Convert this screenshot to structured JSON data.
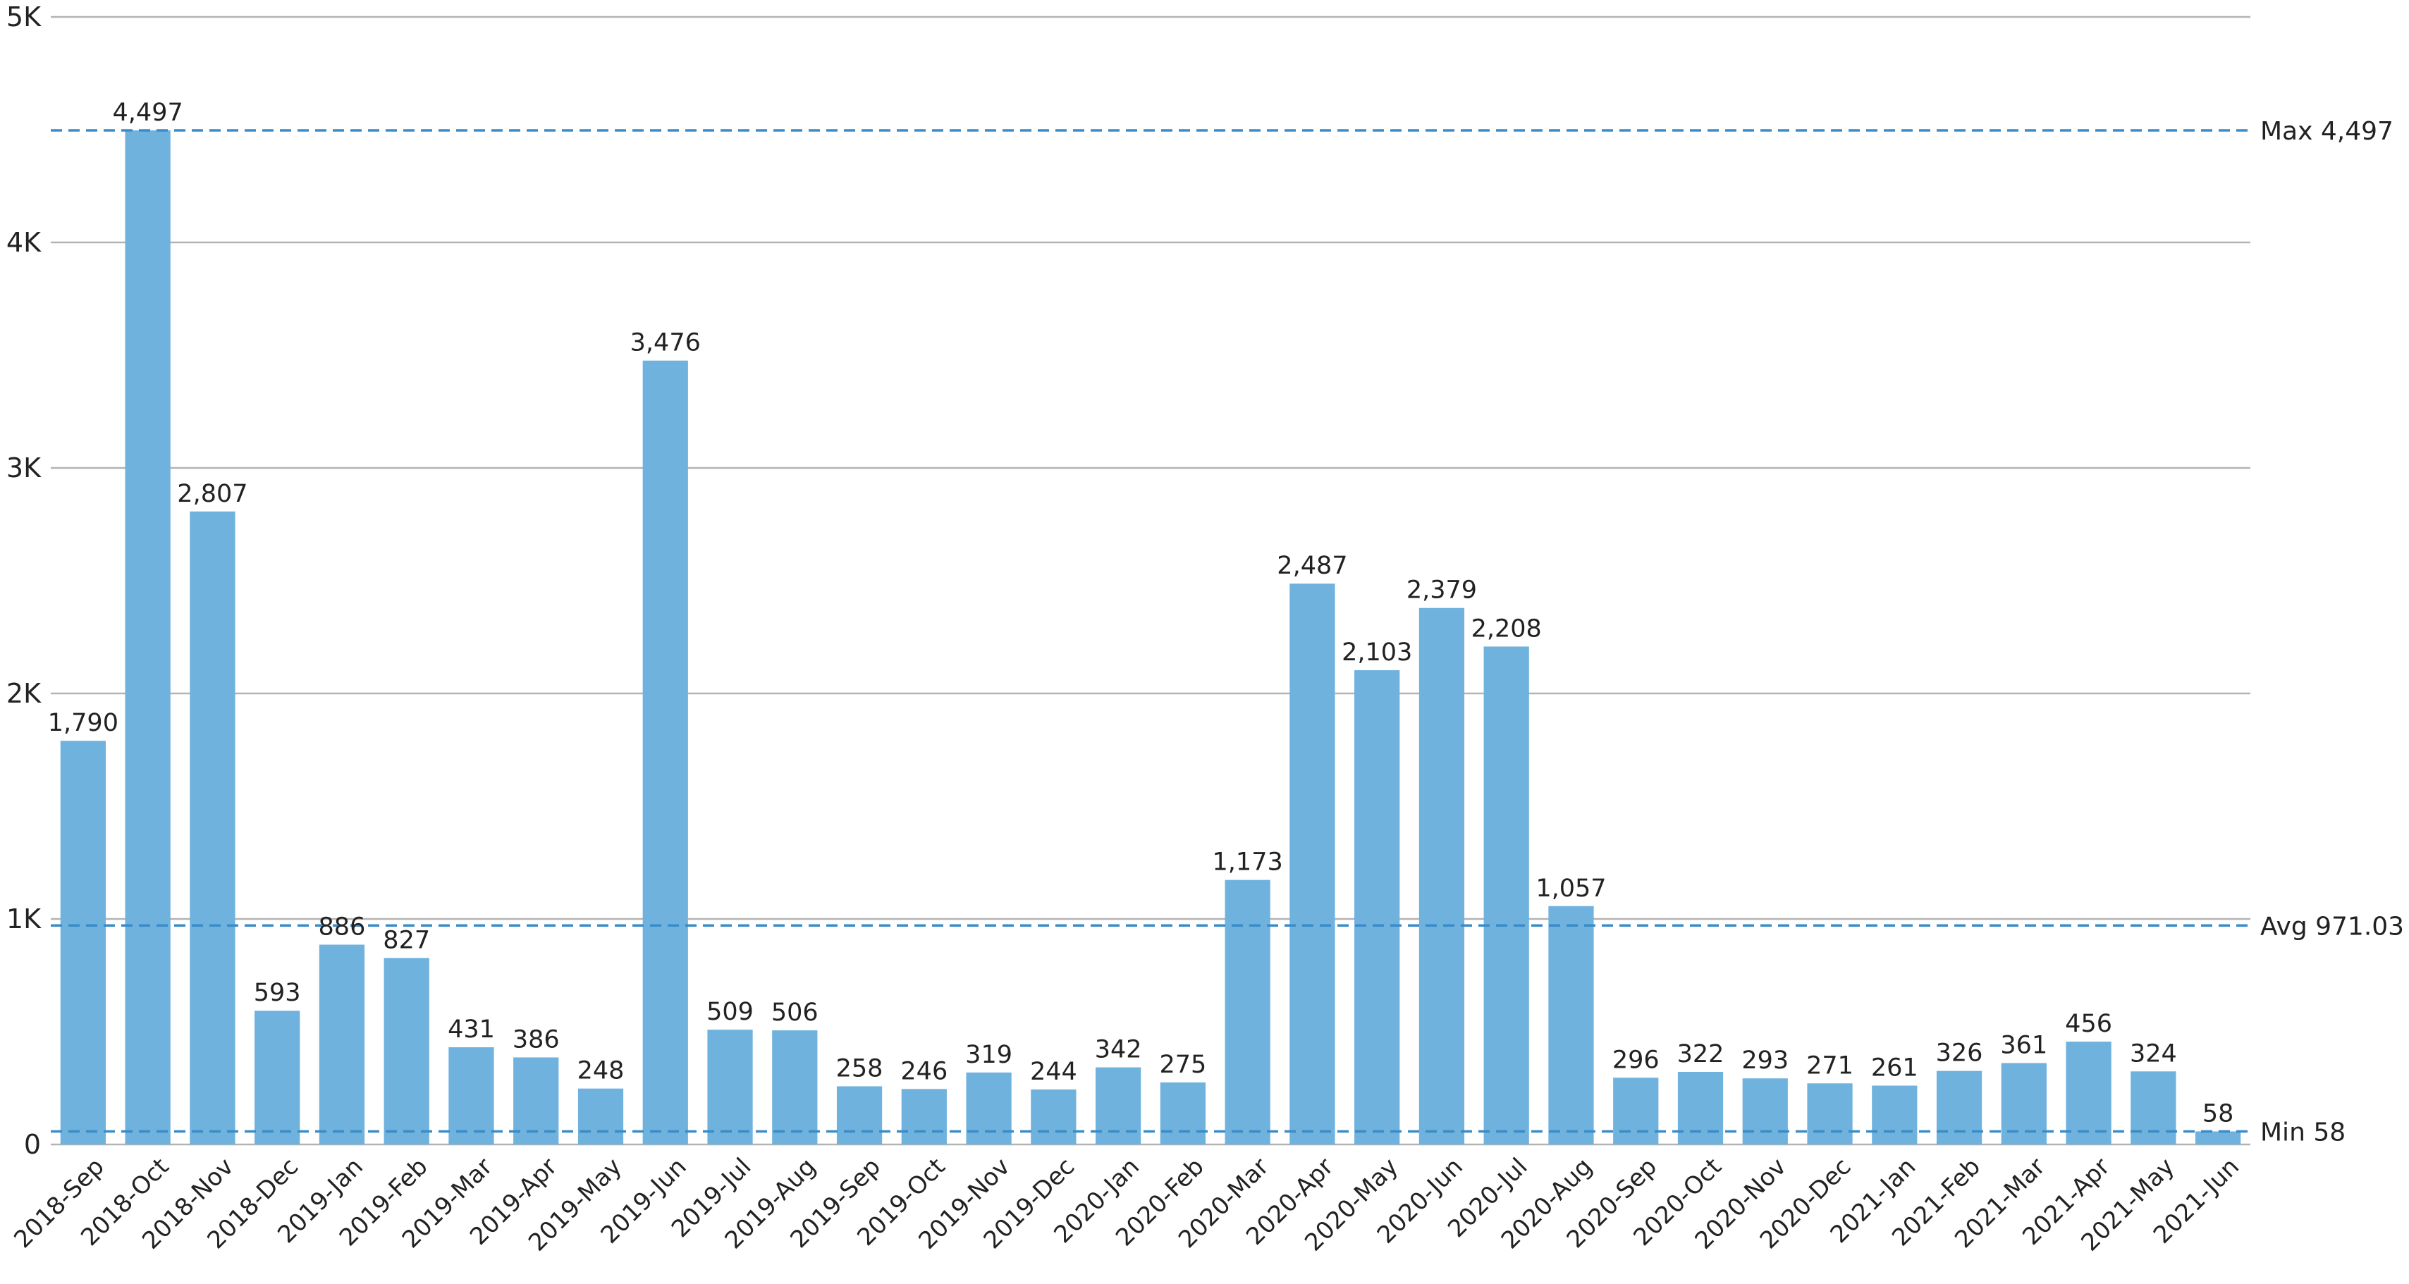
{
  "chart_data": {
    "type": "bar",
    "categories": [
      "2018-Sep",
      "2018-Oct",
      "2018-Nov",
      "2018-Dec",
      "2019-Jan",
      "2019-Feb",
      "2019-Mar",
      "2019-Apr",
      "2019-May",
      "2019-Jun",
      "2019-Jul",
      "2019-Aug",
      "2019-Sep",
      "2019-Oct",
      "2019-Nov",
      "2019-Dec",
      "2020-Jan",
      "2020-Feb",
      "2020-Mar",
      "2020-Apr",
      "2020-May",
      "2020-Jun",
      "2020-Jul",
      "2020-Aug",
      "2020-Sep",
      "2020-Oct",
      "2020-Nov",
      "2020-Dec",
      "2021-Jan",
      "2021-Feb",
      "2021-Mar",
      "2021-Apr",
      "2021-May",
      "2021-Jun"
    ],
    "values": [
      1790,
      4497,
      2807,
      593,
      886,
      827,
      431,
      386,
      248,
      3476,
      509,
      506,
      258,
      246,
      319,
      244,
      342,
      275,
      1173,
      2487,
      2103,
      2379,
      2208,
      1057,
      296,
      322,
      293,
      271,
      261,
      326,
      361,
      456,
      324,
      58
    ],
    "data_labels": [
      "1,790",
      "4,497",
      "2,807",
      "593",
      "886",
      "827",
      "431",
      "386",
      "248",
      "3,476",
      "509",
      "506",
      "258",
      "246",
      "319",
      "244",
      "342",
      "275",
      "1,173",
      "2,487",
      "2,103",
      "2,379",
      "2,208",
      "1,057",
      "296",
      "322",
      "293",
      "271",
      "261",
      "326",
      "361",
      "456",
      "324",
      "58"
    ],
    "ylim": [
      0,
      5000
    ],
    "y_ticks": [
      0,
      1000,
      2000,
      3000,
      4000,
      5000
    ],
    "y_tick_labels": [
      "0",
      "1K",
      "2K",
      "3K",
      "4K",
      "5K"
    ],
    "grid": true,
    "reference_lines": [
      {
        "label": "Max 4,497",
        "value": 4497
      },
      {
        "label": "Avg 971.03",
        "value": 971.03
      },
      {
        "label": "Min 58",
        "value": 58
      }
    ],
    "colors": {
      "bar": "#6fb2de",
      "reference_line": "#3a8cc8",
      "grid": "#b3b3b3"
    }
  }
}
